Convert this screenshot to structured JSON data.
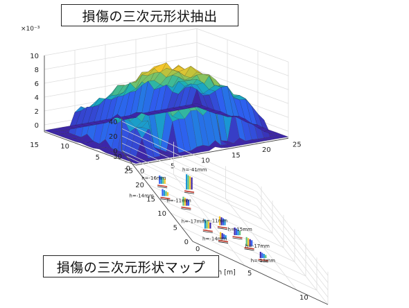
{
  "titles": {
    "top": "損傷の三次元形状抽出",
    "bottom": "損傷の三次元形状マップ"
  },
  "chart_data": [
    {
      "type": "surface",
      "exponent_label": "×10⁻³",
      "z_ticks": [
        "0",
        "2",
        "4",
        "6",
        "8",
        "10"
      ],
      "y_ticks": [
        "0",
        "5",
        "10",
        "15"
      ],
      "x_ticks": [
        "0",
        "5",
        "10",
        "15",
        "20",
        "25"
      ],
      "zlim": [
        -1,
        10
      ],
      "colormap": [
        "#3d26a8",
        "#2e5ff0",
        "#1a93d6",
        "#1cb0b5",
        "#5ec27a",
        "#b7c23e",
        "#f5c52c",
        "#f9e718"
      ]
    },
    {
      "type": "scatter3d",
      "z_ticks": [
        "0",
        "20",
        "40"
      ],
      "y_ticks": [
        "0",
        "5",
        "10",
        "15",
        "20",
        "25",
        "30"
      ],
      "x_ticks": [
        "0",
        "5",
        "10"
      ],
      "xlabel": "Travel direction [m]",
      "annotations": [
        "h=-16mm",
        "h=-41mm",
        "h=-11mm",
        "h=-11mm",
        "h=-15mm",
        "h=-14mm",
        "h=-17mm",
        "h=-17mm",
        "h=-14mm",
        "h=-13mm"
      ]
    }
  ]
}
